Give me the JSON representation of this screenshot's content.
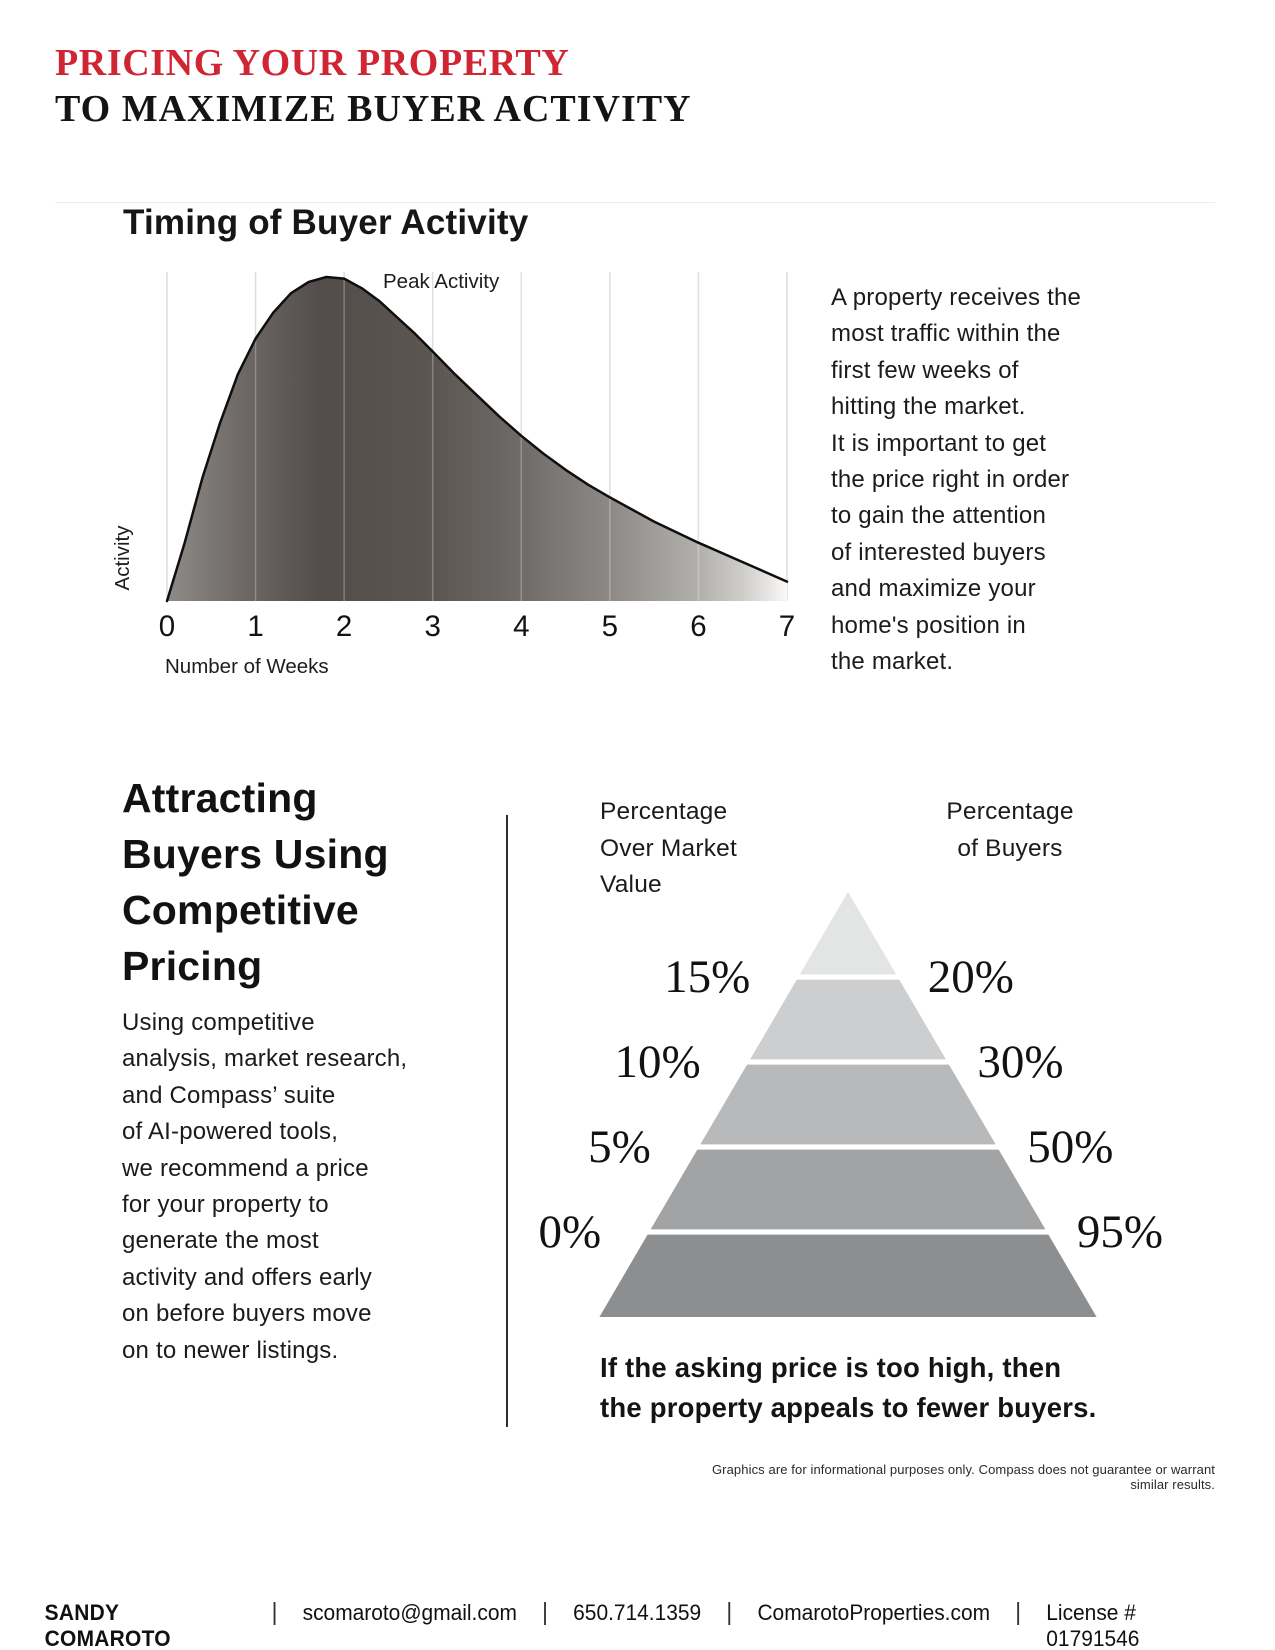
{
  "header": {
    "line1": "PRICING YOUR PROPERTY",
    "line2": "TO MAXIMIZE BUYER ACTIVITY",
    "accent_color": "#d02532"
  },
  "timing": {
    "paragraph_lines": [
      "A property receives the",
      "most traffic within the",
      "first few weeks of",
      "hitting the market.",
      "It is important to get",
      "the price right in order",
      "to gain the attention",
      "of interested buyers",
      "and maximize your",
      "home's position in",
      "the market."
    ]
  },
  "attracting": {
    "heading_lines": [
      "Attracting",
      "Buyers Using",
      "Competitive",
      "Pricing"
    ],
    "paragraph_lines": [
      "Using competitive",
      "analysis, market research,",
      "and Compass’ suite",
      "of AI-powered tools,",
      "we recommend a price",
      "for your property to",
      "generate the most",
      "activity and offers early",
      "on before buyers move",
      "on to newer listings."
    ]
  },
  "chart_data": [
    {
      "type": "area",
      "title": "Timing of Buyer Activity",
      "xlabel": "Number of Weeks",
      "ylabel": "Activity",
      "annotation": "Peak Activity",
      "x_ticks": [
        "0",
        "1",
        "2",
        "3",
        "4",
        "5",
        "6",
        "7"
      ],
      "xlim": [
        0,
        7
      ],
      "grid": "vertical",
      "grid_color": "#d4d4d4",
      "curve_color": "#0f0f0f",
      "peak_week": 1.9,
      "x": [
        0,
        0.2,
        0.4,
        0.6,
        0.8,
        1.0,
        1.2,
        1.4,
        1.6,
        1.8,
        2.0,
        2.2,
        2.4,
        2.6,
        2.8,
        3.0,
        3.25,
        3.5,
        3.75,
        4.0,
        4.25,
        4.5,
        4.75,
        5.0,
        5.5,
        6.0,
        6.5,
        7.0
      ],
      "y": [
        0,
        0.18,
        0.38,
        0.55,
        0.7,
        0.81,
        0.89,
        0.95,
        0.985,
        1.0,
        0.995,
        0.965,
        0.925,
        0.875,
        0.825,
        0.77,
        0.7,
        0.635,
        0.57,
        0.51,
        0.455,
        0.405,
        0.36,
        0.32,
        0.245,
        0.18,
        0.12,
        0.06
      ],
      "fill_gradient": [
        [
          0,
          "#8e8c8a"
        ],
        [
          0.13,
          "#6b6663"
        ],
        [
          0.25,
          "#524d4a"
        ],
        [
          0.43,
          "#5b5652"
        ],
        [
          0.57,
          "#6f6b68"
        ],
        [
          0.71,
          "#8b8885"
        ],
        [
          0.86,
          "#b3b1ae"
        ],
        [
          0.93,
          "#d0cecb"
        ],
        [
          1,
          "#f9f8f7"
        ]
      ]
    },
    {
      "type": "pyramid",
      "left_header": [
        "Percentage",
        "Over Market",
        "Value"
      ],
      "right_header": [
        "Percentage",
        "of Buyers"
      ],
      "rows": [
        {
          "over_market_value": "15%",
          "buyers": "20%"
        },
        {
          "over_market_value": "10%",
          "buyers": "30%"
        },
        {
          "over_market_value": "5%",
          "buyers": "50%"
        },
        {
          "over_market_value": "0%",
          "buyers": "95%"
        }
      ],
      "band_colors": [
        "#e3e4e4",
        "#cdcecf",
        "#b7b9ba",
        "#a1a3a5",
        "#8c8e90"
      ],
      "caption_lines": [
        "If the asking price is too high, then",
        "the property appeals to fewer buyers."
      ]
    }
  ],
  "disclaimer": "Graphics are for informational purposes only. Compass does not guarantee or warrant similar results.",
  "footer": {
    "items": [
      "SANDY COMAROTO",
      "scomaroto@gmail.com",
      "650.714.1359",
      "ComarotoProperties.com",
      "License # 01791546"
    ]
  }
}
